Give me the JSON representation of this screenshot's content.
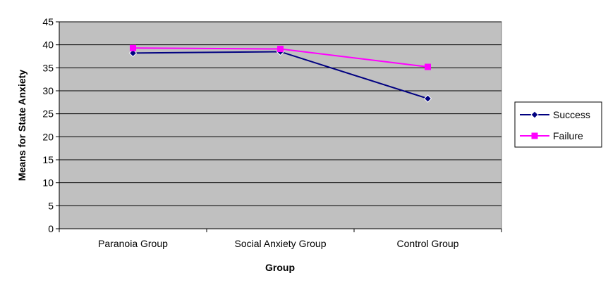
{
  "chart_data": {
    "type": "line",
    "title": "",
    "xlabel": "Group",
    "ylabel": "Means for State Anxiety",
    "categories": [
      "Paranoia Group",
      "Social Anxiety Group",
      "Control Group"
    ],
    "ylim": [
      0,
      45
    ],
    "yticks": [
      0,
      5,
      10,
      15,
      20,
      25,
      30,
      35,
      40,
      45
    ],
    "grid": "horizontal",
    "legend_position": "right",
    "plot_background": "#c0c0c0",
    "series": [
      {
        "name": "Success",
        "values": [
          38.2,
          38.5,
          28.3
        ],
        "color": "#000080",
        "marker": "diamond"
      },
      {
        "name": "Failure",
        "values": [
          39.3,
          39.1,
          35.2
        ],
        "color": "#ff00ff",
        "marker": "square"
      }
    ]
  }
}
